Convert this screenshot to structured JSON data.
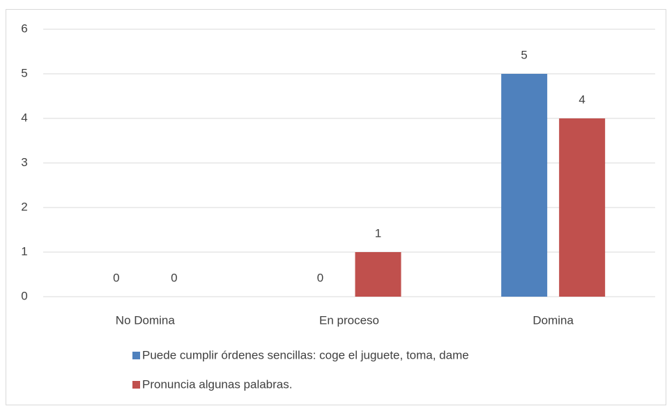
{
  "chart_data": {
    "type": "bar",
    "categories": [
      "No Domina",
      "En proceso",
      "Domina"
    ],
    "series": [
      {
        "name": "Puede cumplir órdenes sencillas: coge el juguete, toma, dame",
        "color": "#4f81bd",
        "values": [
          0,
          0,
          5
        ]
      },
      {
        "name": "Pronuncia algunas palabras.",
        "color": "#c0504d",
        "values": [
          0,
          1,
          4
        ]
      }
    ],
    "ylim": [
      0,
      6
    ],
    "yticks": [
      0,
      1,
      2,
      3,
      4,
      5,
      6
    ],
    "grid": true,
    "legend": "bottom",
    "data_labels": true
  }
}
